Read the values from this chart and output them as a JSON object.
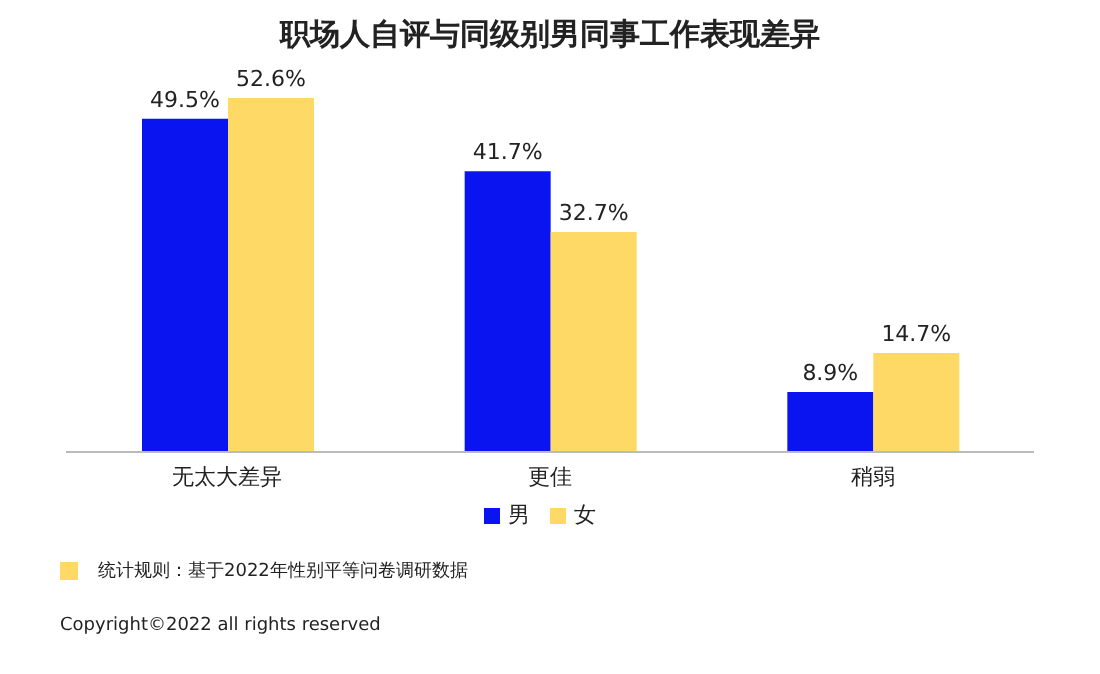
{
  "chart_data": {
    "type": "bar",
    "title": "职场人自评与同级别男同事工作表现差异",
    "categories": [
      "无太大差异",
      "更佳",
      "稍弱"
    ],
    "series": [
      {
        "name": "男",
        "color": "#0a14f0",
        "values": [
          49.5,
          41.7,
          8.9
        ],
        "value_labels": [
          "49.5%",
          "41.7%",
          "8.9%"
        ]
      },
      {
        "name": "女",
        "color": "#ffd966",
        "values": [
          52.6,
          32.7,
          14.7
        ],
        "value_labels": [
          "52.6%",
          "32.7%",
          "14.7%"
        ]
      }
    ],
    "legend": "bottom",
    "annotations": [
      "统计规则：基于2022年性别平等问卷调研数据",
      "Copyright©2022 all rights reserved"
    ]
  }
}
